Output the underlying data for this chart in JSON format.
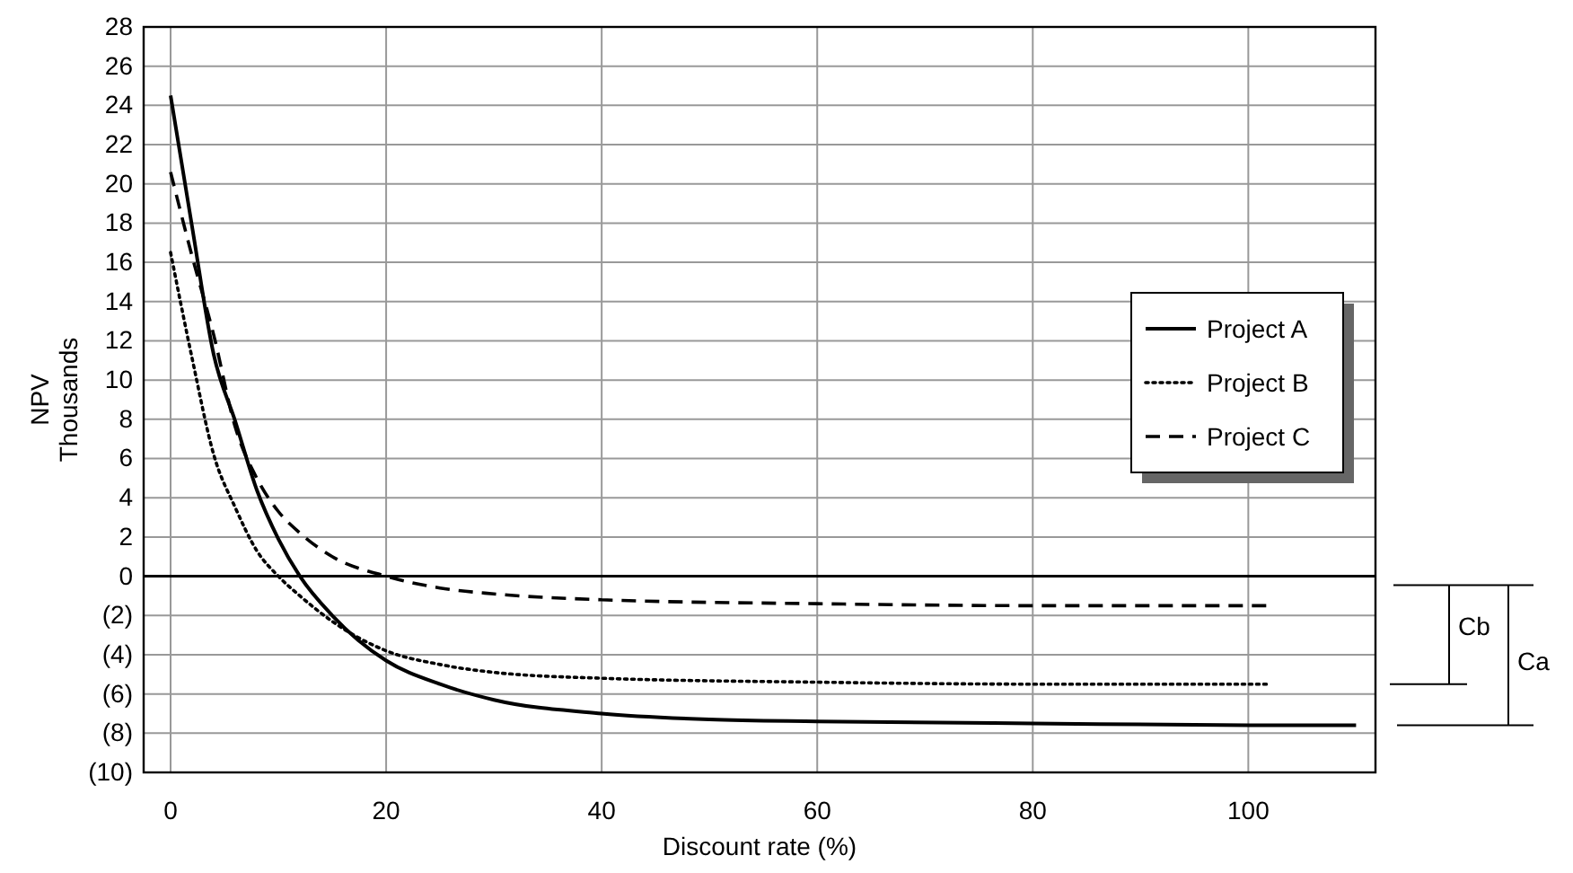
{
  "chart_data": {
    "type": "line",
    "xlabel": "Discount rate (%)",
    "ylabel": "NPV\nThousands",
    "xlim": [
      -2.5,
      111.8
    ],
    "ylim": [
      -10,
      28
    ],
    "xticks": [
      0,
      20,
      40,
      60,
      80,
      100
    ],
    "yticks": [
      {
        "value": -10,
        "label": "(10)"
      },
      {
        "value": -8,
        "label": "(8)"
      },
      {
        "value": -6,
        "label": "(6)"
      },
      {
        "value": -4,
        "label": "(4)"
      },
      {
        "value": -2,
        "label": "(2)"
      },
      0,
      2,
      4,
      6,
      8,
      10,
      12,
      14,
      16,
      18,
      20,
      22,
      24,
      26,
      28
    ],
    "grid": true,
    "legend": "right",
    "marker": "none",
    "ref_lines": [
      {
        "axis": "y",
        "value": 0,
        "color": "#000000"
      }
    ],
    "annotations": [
      "Cb",
      "Ca"
    ],
    "series": [
      {
        "name": "Project A",
        "color": "#000000",
        "line_style": "solid",
        "x": [
          0,
          2,
          4,
          6,
          8,
          10,
          12,
          15,
          20,
          25,
          30,
          40,
          50,
          60,
          80,
          100,
          110
        ],
        "values": [
          24.5,
          17.8,
          11.3,
          7.9,
          4.4,
          1.9,
          0,
          -2,
          -4.3,
          -5.5,
          -6.3,
          -7,
          -7.3,
          -7.4,
          -7.5,
          -7.6,
          -7.6
        ]
      },
      {
        "name": "Project B",
        "color": "#000000",
        "line_style": "dotted",
        "x": [
          0,
          2,
          4,
          6,
          8,
          10,
          12,
          15,
          20,
          25,
          30,
          40,
          60,
          80,
          102
        ],
        "values": [
          16.5,
          11.1,
          6.2,
          3.5,
          1.3,
          0,
          -1,
          -2.3,
          -3.8,
          -4.5,
          -4.9,
          -5.2,
          -5.4,
          -5.5,
          -5.5
        ]
      },
      {
        "name": "Project C",
        "color": "#000000",
        "line_style": "dashed",
        "x": [
          0,
          2,
          4,
          6,
          8,
          10,
          12,
          15,
          20,
          25,
          30,
          40,
          60,
          80,
          102
        ],
        "values": [
          20.6,
          16.3,
          12.3,
          7.6,
          5,
          3.3,
          2.2,
          1,
          0,
          -0.6,
          -0.9,
          -1.2,
          -1.4,
          -1.5,
          -1.5
        ]
      }
    ]
  }
}
